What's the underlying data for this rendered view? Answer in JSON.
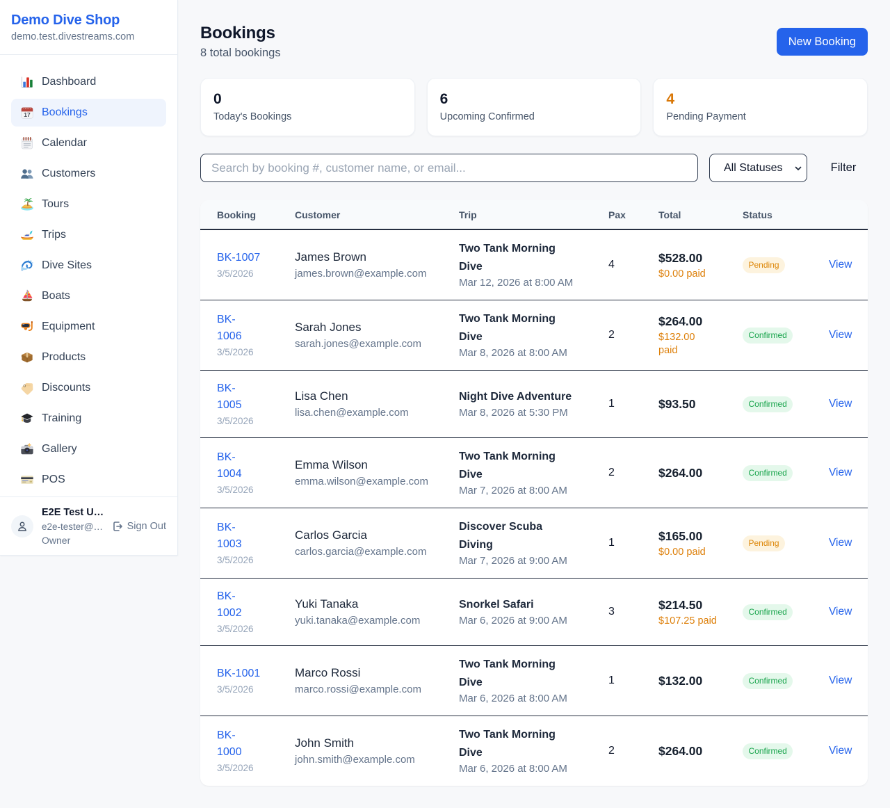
{
  "sidebar": {
    "brand": {
      "name": "Demo Dive Shop",
      "domain": "demo.test.divestreams.com"
    },
    "nav": [
      {
        "label": "Dashboard",
        "icon": "bar-chart-icon",
        "active": false
      },
      {
        "label": "Bookings",
        "icon": "calendar-icon",
        "active": true
      },
      {
        "label": "Calendar",
        "icon": "spiral-calendar-icon",
        "active": false
      },
      {
        "label": "Customers",
        "icon": "people-icon",
        "active": false
      },
      {
        "label": "Tours",
        "icon": "island-icon",
        "active": false
      },
      {
        "label": "Trips",
        "icon": "speedboat-icon",
        "active": false
      },
      {
        "label": "Dive Sites",
        "icon": "wave-icon",
        "active": false
      },
      {
        "label": "Boats",
        "icon": "sailboat-icon",
        "active": false
      },
      {
        "label": "Equipment",
        "icon": "diving-mask-icon",
        "active": false
      },
      {
        "label": "Products",
        "icon": "package-icon",
        "active": false
      },
      {
        "label": "Discounts",
        "icon": "label-tag-icon",
        "active": false
      },
      {
        "label": "Training",
        "icon": "graduation-cap-icon",
        "active": false
      },
      {
        "label": "Gallery",
        "icon": "camera-icon",
        "active": false
      },
      {
        "label": "POS",
        "icon": "credit-card-icon",
        "active": false
      }
    ],
    "user": {
      "name": "E2E Test U…",
      "email": "e2e-tester@…",
      "role": "Owner",
      "sign_out_label": "Sign Out"
    }
  },
  "header": {
    "title": "Bookings",
    "subtitle": "8 total bookings",
    "new_booking_label": "New Booking"
  },
  "stats": [
    {
      "value": "0",
      "label": "Today's Bookings",
      "accent": "dark"
    },
    {
      "value": "6",
      "label": "Upcoming Confirmed",
      "accent": "dark"
    },
    {
      "value": "4",
      "label": "Pending Payment",
      "accent": "orange"
    }
  ],
  "filters": {
    "search_placeholder": "Search by booking #, customer name, or email...",
    "status_selected": "All Statuses",
    "filter_label": "Filter"
  },
  "table": {
    "columns": [
      "Booking",
      "Customer",
      "Trip",
      "Pax",
      "Total",
      "Status"
    ],
    "view_label": "View",
    "rows": [
      {
        "id": "BK-1007",
        "id_wrapped": false,
        "date": "3/5/2026",
        "customer": "James Brown",
        "email": "james.brown@example.com",
        "trip": "Two Tank Morning Dive",
        "trip_time": "Mar 12, 2026 at 8:00 AM",
        "pax": "4",
        "total": "$528.00",
        "paid": "$0.00 paid",
        "paid_wrapped": false,
        "status": "Pending"
      },
      {
        "id": "BK-1006",
        "id_wrapped": true,
        "date": "3/5/2026",
        "customer": "Sarah Jones",
        "email": "sarah.jones@example.com",
        "trip": "Two Tank Morning Dive",
        "trip_time": "Mar 8, 2026 at 8:00 AM",
        "pax": "2",
        "total": "$264.00",
        "paid": "$132.00 paid",
        "paid_wrapped": true,
        "status": "Confirmed"
      },
      {
        "id": "BK-1005",
        "id_wrapped": true,
        "date": "3/5/2026",
        "customer": "Lisa Chen",
        "email": "lisa.chen@example.com",
        "trip": "Night Dive Adventure",
        "trip_time": "Mar 8, 2026 at 5:30 PM",
        "pax": "1",
        "total": "$93.50",
        "paid": "",
        "paid_wrapped": false,
        "status": "Confirmed"
      },
      {
        "id": "BK-1004",
        "id_wrapped": true,
        "date": "3/5/2026",
        "customer": "Emma Wilson",
        "email": "emma.wilson@example.com",
        "trip": "Two Tank Morning Dive",
        "trip_time": "Mar 7, 2026 at 8:00 AM",
        "pax": "2",
        "total": "$264.00",
        "paid": "",
        "paid_wrapped": false,
        "status": "Confirmed"
      },
      {
        "id": "BK-1003",
        "id_wrapped": true,
        "date": "3/5/2026",
        "customer": "Carlos Garcia",
        "email": "carlos.garcia@example.com",
        "trip": "Discover Scuba Diving",
        "trip_time": "Mar 7, 2026 at 9:00 AM",
        "pax": "1",
        "total": "$165.00",
        "paid": "$0.00 paid",
        "paid_wrapped": false,
        "status": "Pending"
      },
      {
        "id": "BK-1002",
        "id_wrapped": true,
        "date": "3/5/2026",
        "customer": "Yuki Tanaka",
        "email": "yuki.tanaka@example.com",
        "trip": "Snorkel Safari",
        "trip_time": "Mar 6, 2026 at 9:00 AM",
        "pax": "3",
        "total": "$214.50",
        "paid": "$107.25 paid",
        "paid_wrapped": false,
        "status": "Confirmed"
      },
      {
        "id": "BK-1001",
        "id_wrapped": false,
        "date": "3/5/2026",
        "customer": "Marco Rossi",
        "email": "marco.rossi@example.com",
        "trip": "Two Tank Morning Dive",
        "trip_time": "Mar 6, 2026 at 8:00 AM",
        "pax": "1",
        "total": "$132.00",
        "paid": "",
        "paid_wrapped": false,
        "status": "Confirmed"
      },
      {
        "id": "BK-1000",
        "id_wrapped": true,
        "date": "3/5/2026",
        "customer": "John Smith",
        "email": "john.smith@example.com",
        "trip": "Two Tank Morning Dive",
        "trip_time": "Mar 6, 2026 at 8:00 AM",
        "pax": "2",
        "total": "$264.00",
        "paid": "",
        "paid_wrapped": false,
        "status": "Confirmed"
      }
    ]
  }
}
